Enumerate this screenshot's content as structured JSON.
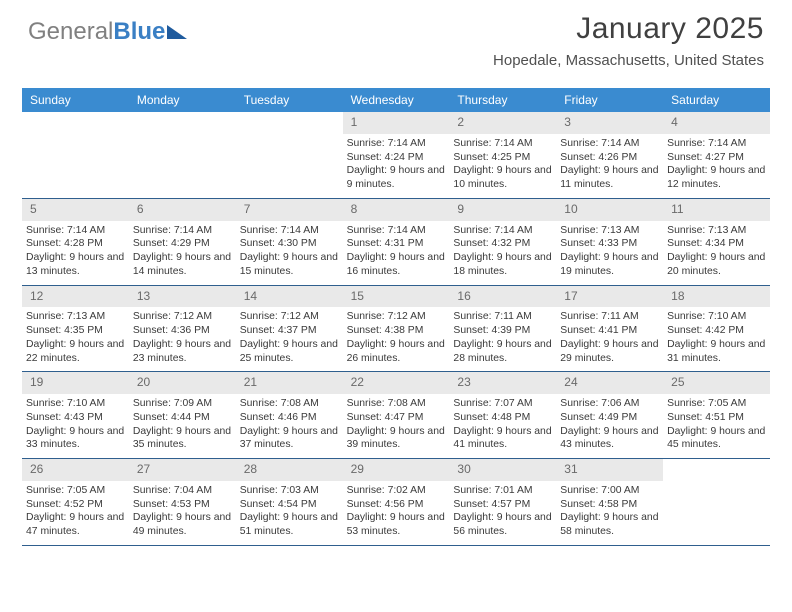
{
  "logo": {
    "part1": "General",
    "part2": "Blue"
  },
  "header": {
    "month": "January 2025",
    "location": "Hopedale, Massachusetts, United States"
  },
  "daynames": [
    "Sunday",
    "Monday",
    "Tuesday",
    "Wednesday",
    "Thursday",
    "Friday",
    "Saturday"
  ],
  "colors": {
    "header_bg": "#3a8bd0",
    "daynum_bg": "#e9e9e9",
    "week_border": "#2f5f8e"
  },
  "weeks": [
    [
      {
        "empty": true
      },
      {
        "empty": true
      },
      {
        "empty": true
      },
      {
        "day": "1",
        "sunrise": "7:14 AM",
        "sunset": "4:24 PM",
        "daylight": "9 hours and 9 minutes."
      },
      {
        "day": "2",
        "sunrise": "7:14 AM",
        "sunset": "4:25 PM",
        "daylight": "9 hours and 10 minutes."
      },
      {
        "day": "3",
        "sunrise": "7:14 AM",
        "sunset": "4:26 PM",
        "daylight": "9 hours and 11 minutes."
      },
      {
        "day": "4",
        "sunrise": "7:14 AM",
        "sunset": "4:27 PM",
        "daylight": "9 hours and 12 minutes."
      }
    ],
    [
      {
        "day": "5",
        "sunrise": "7:14 AM",
        "sunset": "4:28 PM",
        "daylight": "9 hours and 13 minutes."
      },
      {
        "day": "6",
        "sunrise": "7:14 AM",
        "sunset": "4:29 PM",
        "daylight": "9 hours and 14 minutes."
      },
      {
        "day": "7",
        "sunrise": "7:14 AM",
        "sunset": "4:30 PM",
        "daylight": "9 hours and 15 minutes."
      },
      {
        "day": "8",
        "sunrise": "7:14 AM",
        "sunset": "4:31 PM",
        "daylight": "9 hours and 16 minutes."
      },
      {
        "day": "9",
        "sunrise": "7:14 AM",
        "sunset": "4:32 PM",
        "daylight": "9 hours and 18 minutes."
      },
      {
        "day": "10",
        "sunrise": "7:13 AM",
        "sunset": "4:33 PM",
        "daylight": "9 hours and 19 minutes."
      },
      {
        "day": "11",
        "sunrise": "7:13 AM",
        "sunset": "4:34 PM",
        "daylight": "9 hours and 20 minutes."
      }
    ],
    [
      {
        "day": "12",
        "sunrise": "7:13 AM",
        "sunset": "4:35 PM",
        "daylight": "9 hours and 22 minutes."
      },
      {
        "day": "13",
        "sunrise": "7:12 AM",
        "sunset": "4:36 PM",
        "daylight": "9 hours and 23 minutes."
      },
      {
        "day": "14",
        "sunrise": "7:12 AM",
        "sunset": "4:37 PM",
        "daylight": "9 hours and 25 minutes."
      },
      {
        "day": "15",
        "sunrise": "7:12 AM",
        "sunset": "4:38 PM",
        "daylight": "9 hours and 26 minutes."
      },
      {
        "day": "16",
        "sunrise": "7:11 AM",
        "sunset": "4:39 PM",
        "daylight": "9 hours and 28 minutes."
      },
      {
        "day": "17",
        "sunrise": "7:11 AM",
        "sunset": "4:41 PM",
        "daylight": "9 hours and 29 minutes."
      },
      {
        "day": "18",
        "sunrise": "7:10 AM",
        "sunset": "4:42 PM",
        "daylight": "9 hours and 31 minutes."
      }
    ],
    [
      {
        "day": "19",
        "sunrise": "7:10 AM",
        "sunset": "4:43 PM",
        "daylight": "9 hours and 33 minutes."
      },
      {
        "day": "20",
        "sunrise": "7:09 AM",
        "sunset": "4:44 PM",
        "daylight": "9 hours and 35 minutes."
      },
      {
        "day": "21",
        "sunrise": "7:08 AM",
        "sunset": "4:46 PM",
        "daylight": "9 hours and 37 minutes."
      },
      {
        "day": "22",
        "sunrise": "7:08 AM",
        "sunset": "4:47 PM",
        "daylight": "9 hours and 39 minutes."
      },
      {
        "day": "23",
        "sunrise": "7:07 AM",
        "sunset": "4:48 PM",
        "daylight": "9 hours and 41 minutes."
      },
      {
        "day": "24",
        "sunrise": "7:06 AM",
        "sunset": "4:49 PM",
        "daylight": "9 hours and 43 minutes."
      },
      {
        "day": "25",
        "sunrise": "7:05 AM",
        "sunset": "4:51 PM",
        "daylight": "9 hours and 45 minutes."
      }
    ],
    [
      {
        "day": "26",
        "sunrise": "7:05 AM",
        "sunset": "4:52 PM",
        "daylight": "9 hours and 47 minutes."
      },
      {
        "day": "27",
        "sunrise": "7:04 AM",
        "sunset": "4:53 PM",
        "daylight": "9 hours and 49 minutes."
      },
      {
        "day": "28",
        "sunrise": "7:03 AM",
        "sunset": "4:54 PM",
        "daylight": "9 hours and 51 minutes."
      },
      {
        "day": "29",
        "sunrise": "7:02 AM",
        "sunset": "4:56 PM",
        "daylight": "9 hours and 53 minutes."
      },
      {
        "day": "30",
        "sunrise": "7:01 AM",
        "sunset": "4:57 PM",
        "daylight": "9 hours and 56 minutes."
      },
      {
        "day": "31",
        "sunrise": "7:00 AM",
        "sunset": "4:58 PM",
        "daylight": "9 hours and 58 minutes."
      },
      {
        "empty": true
      }
    ]
  ],
  "labels": {
    "sunrise": "Sunrise: ",
    "sunset": "Sunset: ",
    "daylight": "Daylight: "
  }
}
